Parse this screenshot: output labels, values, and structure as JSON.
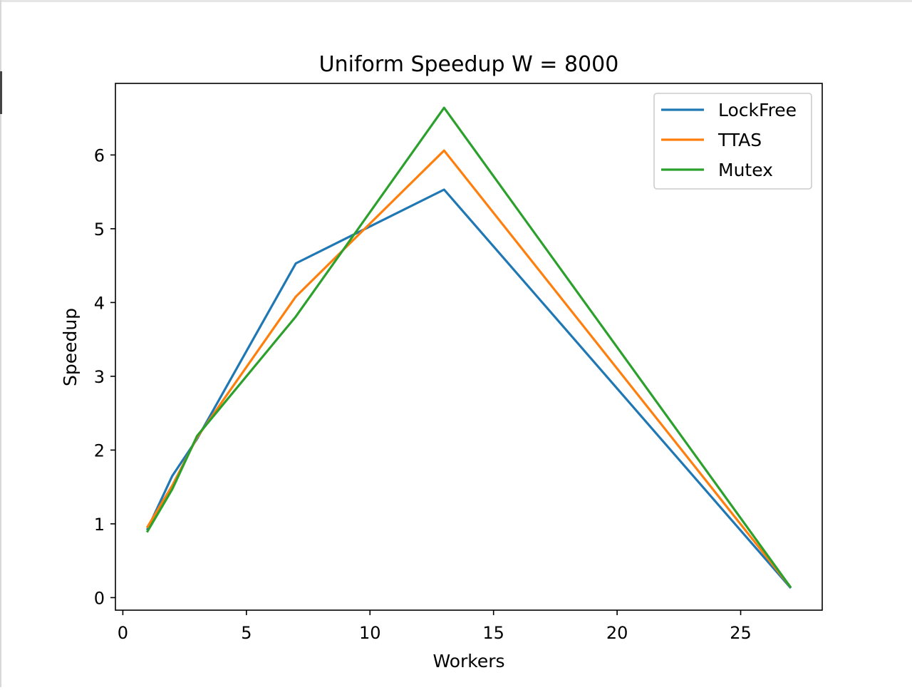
{
  "chart_data": {
    "type": "line",
    "title": "Uniform Speedup W = 8000",
    "xlabel": "Workers",
    "ylabel": "Speedup",
    "xlim": [
      -0.3,
      28.3
    ],
    "ylim": [
      -0.17,
      6.97
    ],
    "xticks": [
      0,
      5,
      10,
      15,
      20,
      25
    ],
    "yticks": [
      0,
      1,
      2,
      3,
      4,
      5,
      6
    ],
    "x": [
      1,
      2,
      3,
      7,
      13,
      27
    ],
    "series": [
      {
        "name": "LockFree",
        "color": "#1f77b4",
        "values": [
          0.93,
          1.65,
          2.15,
          4.53,
          5.53,
          0.14
        ]
      },
      {
        "name": "TTAS",
        "color": "#ff7f0e",
        "values": [
          0.96,
          1.52,
          2.17,
          4.08,
          6.06,
          0.15
        ]
      },
      {
        "name": "Mutex",
        "color": "#2ca02c",
        "values": [
          0.9,
          1.47,
          2.19,
          3.81,
          6.64,
          0.15
        ]
      }
    ],
    "legend_position": "top-right",
    "grid": false
  }
}
